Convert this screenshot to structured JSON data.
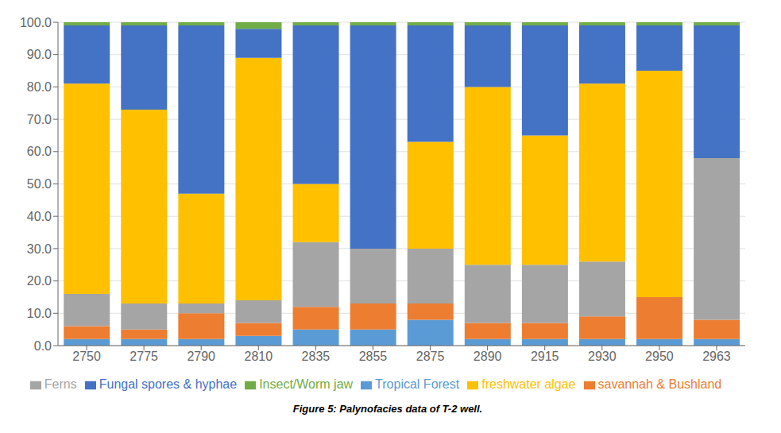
{
  "chart_data": {
    "type": "bar",
    "caption": "Figure 5: Palynofacies data of T-2 well.",
    "categories": [
      "2750",
      "2775",
      "2790",
      "2810",
      "2835",
      "2855",
      "2875",
      "2890",
      "2915",
      "2930",
      "2950",
      "2963"
    ],
    "series": [
      {
        "name": "Tropical Forest",
        "color": "#5B9BD5",
        "values": [
          2,
          2,
          2,
          3,
          5,
          5,
          8,
          2,
          2,
          2,
          2,
          2
        ]
      },
      {
        "name": "savannah & Bushland",
        "color": "#ED7D31",
        "values": [
          4,
          3,
          8,
          4,
          7,
          8,
          5,
          5,
          5,
          7,
          13,
          6
        ]
      },
      {
        "name": "Ferns",
        "color": "#A5A5A5",
        "values": [
          10,
          8,
          3,
          7,
          20,
          17,
          17,
          18,
          18,
          17,
          0,
          50
        ]
      },
      {
        "name": "freshwater algae",
        "color": "#FFC000",
        "values": [
          65,
          60,
          34,
          75,
          18,
          0,
          33,
          55,
          40,
          55,
          70,
          0
        ]
      },
      {
        "name": "Fungal spores & hyphae",
        "color": "#4472C4",
        "values": [
          18,
          26,
          52,
          9,
          49,
          69,
          36,
          19,
          34,
          18,
          14,
          41
        ]
      },
      {
        "name": "Insect/Worm jaw",
        "color": "#70AD47",
        "values": [
          1,
          1,
          1,
          2,
          1,
          1,
          1,
          1,
          1,
          1,
          1,
          1
        ]
      }
    ],
    "stacked": true,
    "ylim": [
      0,
      100
    ],
    "yticks": [
      {
        "value": 0,
        "label": "0.0"
      },
      {
        "value": 10,
        "label": "10.0"
      },
      {
        "value": 20,
        "label": "20.0"
      },
      {
        "value": 30,
        "label": "30.0"
      },
      {
        "value": 40,
        "label": "40.0"
      },
      {
        "value": 50,
        "label": "50.0"
      },
      {
        "value": 60,
        "label": "60.0"
      },
      {
        "value": 70,
        "label": "70.0"
      },
      {
        "value": 80,
        "label": "80.0"
      },
      {
        "value": 90,
        "label": "90.0"
      },
      {
        "value": 100,
        "label": "100.0"
      }
    ],
    "grid": true,
    "legend": "bottom"
  }
}
